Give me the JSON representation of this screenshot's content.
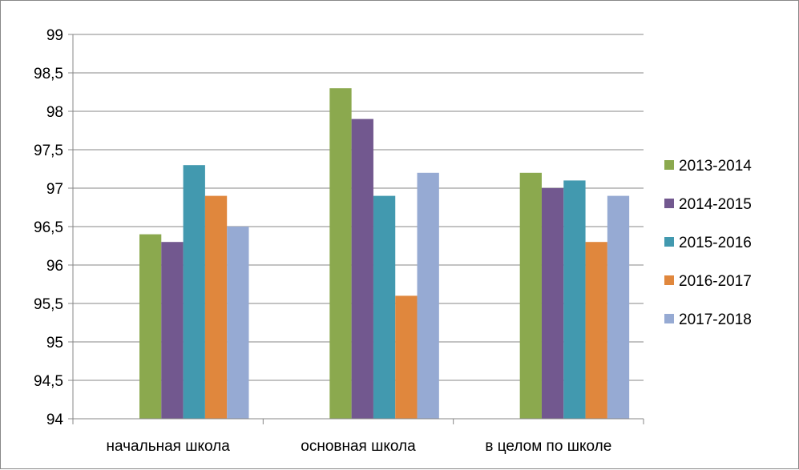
{
  "chart_data": {
    "type": "bar",
    "categories": [
      "начальная школа",
      "основная школа",
      "в целом по школе"
    ],
    "series": [
      {
        "name": "2013-2014",
        "color": "#8BA94E",
        "values": [
          96.4,
          98.3,
          97.2
        ]
      },
      {
        "name": "2014-2015",
        "color": "#72588F",
        "values": [
          96.3,
          97.9,
          97.0
        ]
      },
      {
        "name": "2015-2016",
        "color": "#4299AF",
        "values": [
          97.3,
          96.9,
          97.1
        ]
      },
      {
        "name": "2016-2017",
        "color": "#E0873D",
        "values": [
          96.9,
          95.6,
          96.3
        ]
      },
      {
        "name": "2017-2018",
        "color": "#96AAD3",
        "values": [
          96.5,
          97.2,
          96.9
        ]
      }
    ],
    "ylim": [
      94,
      99
    ],
    "yticks": [
      "94",
      "94,5",
      "95",
      "95,5",
      "96",
      "96,5",
      "97",
      "97,5",
      "98",
      "98,5",
      "99"
    ],
    "grid": true,
    "legend_position": "right",
    "title": "",
    "xlabel": "",
    "ylabel": ""
  }
}
